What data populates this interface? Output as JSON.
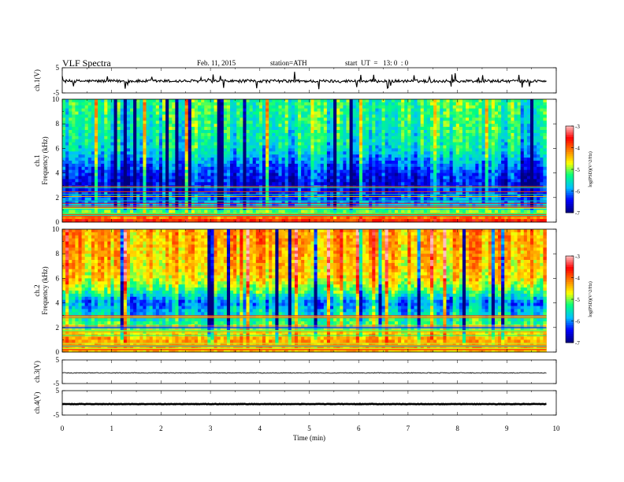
{
  "header": {
    "title": "VLF Spectra",
    "date": "Feb. 11, 2015",
    "station": "station=ATH",
    "start": "start  UT  =   13: 0  : 0"
  },
  "chart_data": [
    {
      "type": "line",
      "panel": "ch1-waveform",
      "ylabel": "ch.1(V)",
      "ylim": [
        -5,
        5
      ],
      "yticks": [
        "5",
        "-5"
      ],
      "xlim": [
        0,
        10
      ],
      "data_extent_x": [
        0,
        9.8
      ],
      "level": -0.3,
      "noise_amplitude": 0.6
    },
    {
      "type": "heatmap",
      "panel": "ch1-spectrogram",
      "ylabel_lines": [
        "ch.1",
        "Frequency  (kHz)"
      ],
      "ylim": [
        0,
        10
      ],
      "yticks": [
        "0",
        "2",
        "4",
        "6",
        "8",
        "10"
      ],
      "xlim": [
        0,
        10
      ],
      "data_extent_x": [
        0,
        9.8
      ],
      "colorbar": {
        "label": "log(PSD)(V^2/Hz)",
        "range": [
          -7,
          -3
        ],
        "ticks": [
          "-3",
          "-4",
          "-5",
          "-6",
          "-7"
        ]
      },
      "profile_kHz_logPSD": [
        [
          0,
          -3.5
        ],
        [
          0.6,
          -4.5
        ],
        [
          1.2,
          -5.8
        ],
        [
          2,
          -6.2
        ],
        [
          3,
          -6.6
        ],
        [
          4,
          -6.4
        ],
        [
          5,
          -6.0
        ],
        [
          6,
          -5.6
        ],
        [
          8,
          -5.4
        ],
        [
          10,
          -5.3
        ]
      ],
      "color_scale": [
        "#000080",
        "#0000ff",
        "#00c0ff",
        "#00ff80",
        "#ffff00",
        "#ff8000",
        "#ff0000",
        "#ffc0c0"
      ]
    },
    {
      "type": "heatmap",
      "panel": "ch2-spectrogram",
      "ylabel_lines": [
        "ch.2",
        "Frequency  (kHz)"
      ],
      "ylim": [
        0,
        10
      ],
      "yticks": [
        "0",
        "2",
        "4",
        "6",
        "8",
        "10"
      ],
      "xlim": [
        0,
        10
      ],
      "data_extent_x": [
        0,
        9.8
      ],
      "colorbar": {
        "label": "log(PSD)(V^2/Hz)",
        "range": [
          -7,
          -3
        ],
        "ticks": [
          "-3",
          "-4",
          "-5",
          "-6",
          "-7"
        ]
      },
      "profile_kHz_logPSD": [
        [
          0,
          -4.5
        ],
        [
          1,
          -4.3
        ],
        [
          2,
          -5.0
        ],
        [
          3,
          -5.6
        ],
        [
          4,
          -6.1
        ],
        [
          5,
          -5.2
        ],
        [
          6,
          -4.6
        ],
        [
          8,
          -4.4
        ],
        [
          10,
          -4.3
        ]
      ],
      "color_scale": [
        "#000080",
        "#0000ff",
        "#00c0ff",
        "#00ff80",
        "#ffff00",
        "#ff8000",
        "#ff0000",
        "#ffc0c0"
      ]
    },
    {
      "type": "line",
      "panel": "ch3-waveform",
      "ylabel": "ch.3(V)",
      "ylim": [
        -5,
        5
      ],
      "yticks": [
        "5",
        "-5"
      ],
      "xlim": [
        0,
        10
      ],
      "data_extent_x": [
        0,
        9.8
      ],
      "level": -0.5,
      "noise_amplitude": 0.15
    },
    {
      "type": "line",
      "panel": "ch4-waveform",
      "ylabel": "ch.4(V)",
      "ylim": [
        -5,
        5
      ],
      "yticks": [
        "5",
        "-5"
      ],
      "xlim": [
        0,
        10
      ],
      "data_extent_x": [
        0,
        9.8
      ],
      "level": -0.5,
      "noise_amplitude": 0.1
    }
  ],
  "xaxis": {
    "label": "Time  (min)",
    "ticks": [
      "0",
      "1",
      "2",
      "3",
      "4",
      "5",
      "6",
      "7",
      "8",
      "9",
      "10"
    ]
  }
}
